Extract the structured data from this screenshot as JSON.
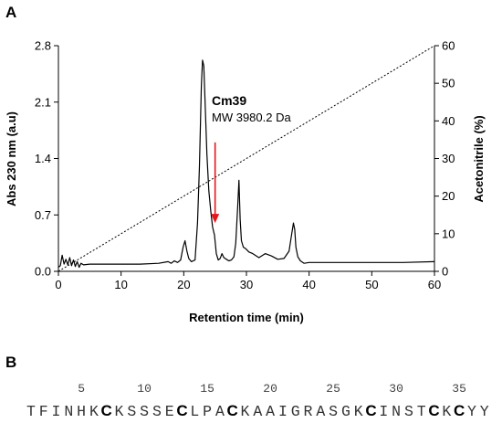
{
  "panels": {
    "a": "A",
    "b": "B"
  },
  "chart_data": {
    "type": "line",
    "xlabel": "Retention time (min)",
    "ylabel": "Abs 230 nm (a.u)",
    "y2label": "Acetonitrile (%)",
    "xlim": [
      0,
      60
    ],
    "ylim": [
      0,
      2.8
    ],
    "y2lim": [
      0,
      60
    ],
    "x_ticks": [
      0,
      10,
      20,
      30,
      40,
      50,
      60
    ],
    "y_ticks": [
      "0.0",
      "0.7",
      "1.4",
      "2.1",
      "2.8"
    ],
    "y2_ticks": [
      0,
      10,
      20,
      30,
      40,
      50,
      60
    ],
    "grid": false,
    "series": [
      {
        "style": "solid",
        "color": "#000000",
        "axis": "left",
        "x": [
          0,
          0.3,
          0.6,
          0.9,
          1.2,
          1.5,
          1.8,
          2.1,
          2.4,
          2.7,
          3.0,
          3.3,
          3.6,
          4.0,
          5,
          7,
          10,
          13,
          16,
          17.5,
          18.0,
          18.5,
          19.0,
          19.5,
          19.9,
          20.2,
          20.5,
          20.8,
          21.2,
          21.8,
          22.2,
          22.5,
          22.8,
          23.0,
          23.2,
          23.4,
          23.7,
          24.0,
          24.3,
          24.6,
          24.9,
          25.2,
          25.5,
          25.8,
          26.1,
          26.4,
          26.8,
          27.2,
          27.6,
          28.0,
          28.3,
          28.6,
          28.8,
          29.0,
          29.2,
          29.5,
          29.9,
          30.4,
          31.0,
          32.0,
          33.0,
          34.0,
          35.0,
          36.0,
          36.8,
          37.2,
          37.5,
          37.7,
          37.9,
          38.2,
          38.6,
          39.2,
          40.0,
          41.0,
          42.0,
          45,
          50,
          55,
          60
        ],
        "y": [
          0.05,
          0.07,
          0.2,
          0.09,
          0.15,
          0.08,
          0.17,
          0.07,
          0.14,
          0.06,
          0.12,
          0.05,
          0.1,
          0.08,
          0.09,
          0.09,
          0.09,
          0.09,
          0.1,
          0.12,
          0.1,
          0.13,
          0.11,
          0.14,
          0.3,
          0.38,
          0.25,
          0.16,
          0.12,
          0.14,
          0.6,
          1.3,
          2.3,
          2.62,
          2.55,
          2.1,
          1.45,
          1.0,
          0.75,
          0.55,
          0.45,
          0.22,
          0.14,
          0.16,
          0.22,
          0.17,
          0.15,
          0.13,
          0.14,
          0.18,
          0.35,
          0.8,
          1.13,
          0.65,
          0.38,
          0.3,
          0.28,
          0.24,
          0.22,
          0.17,
          0.22,
          0.19,
          0.15,
          0.16,
          0.25,
          0.45,
          0.6,
          0.52,
          0.3,
          0.18,
          0.13,
          0.1,
          0.11,
          0.11,
          0.11,
          0.11,
          0.11,
          0.11,
          0.12
        ]
      },
      {
        "style": "dotted",
        "color": "#000000",
        "axis": "right",
        "x": [
          0,
          60
        ],
        "y": [
          0,
          60
        ]
      }
    ],
    "annotations": [
      {
        "title": "Cm39",
        "subtitle": "MW 3980.2 Da"
      }
    ],
    "arrow": {
      "x": 25,
      "y_from": 1.6,
      "y_to": 0.6,
      "color": "#e8141c"
    }
  },
  "sequence": {
    "position_marks": [
      "5",
      "10",
      "15",
      "20",
      "25",
      "30",
      "35"
    ],
    "residues": [
      "T",
      "F",
      "I",
      "N",
      "H",
      "K",
      "C",
      "K",
      "S",
      "S",
      "S",
      "E",
      "C",
      "L",
      "P",
      "A",
      "C",
      "K",
      "A",
      "A",
      "I",
      "G",
      "R",
      "A",
      "S",
      "G",
      "K",
      "C",
      "I",
      "N",
      "S",
      "T",
      "C",
      "K",
      "C",
      "Y",
      "Y"
    ]
  }
}
